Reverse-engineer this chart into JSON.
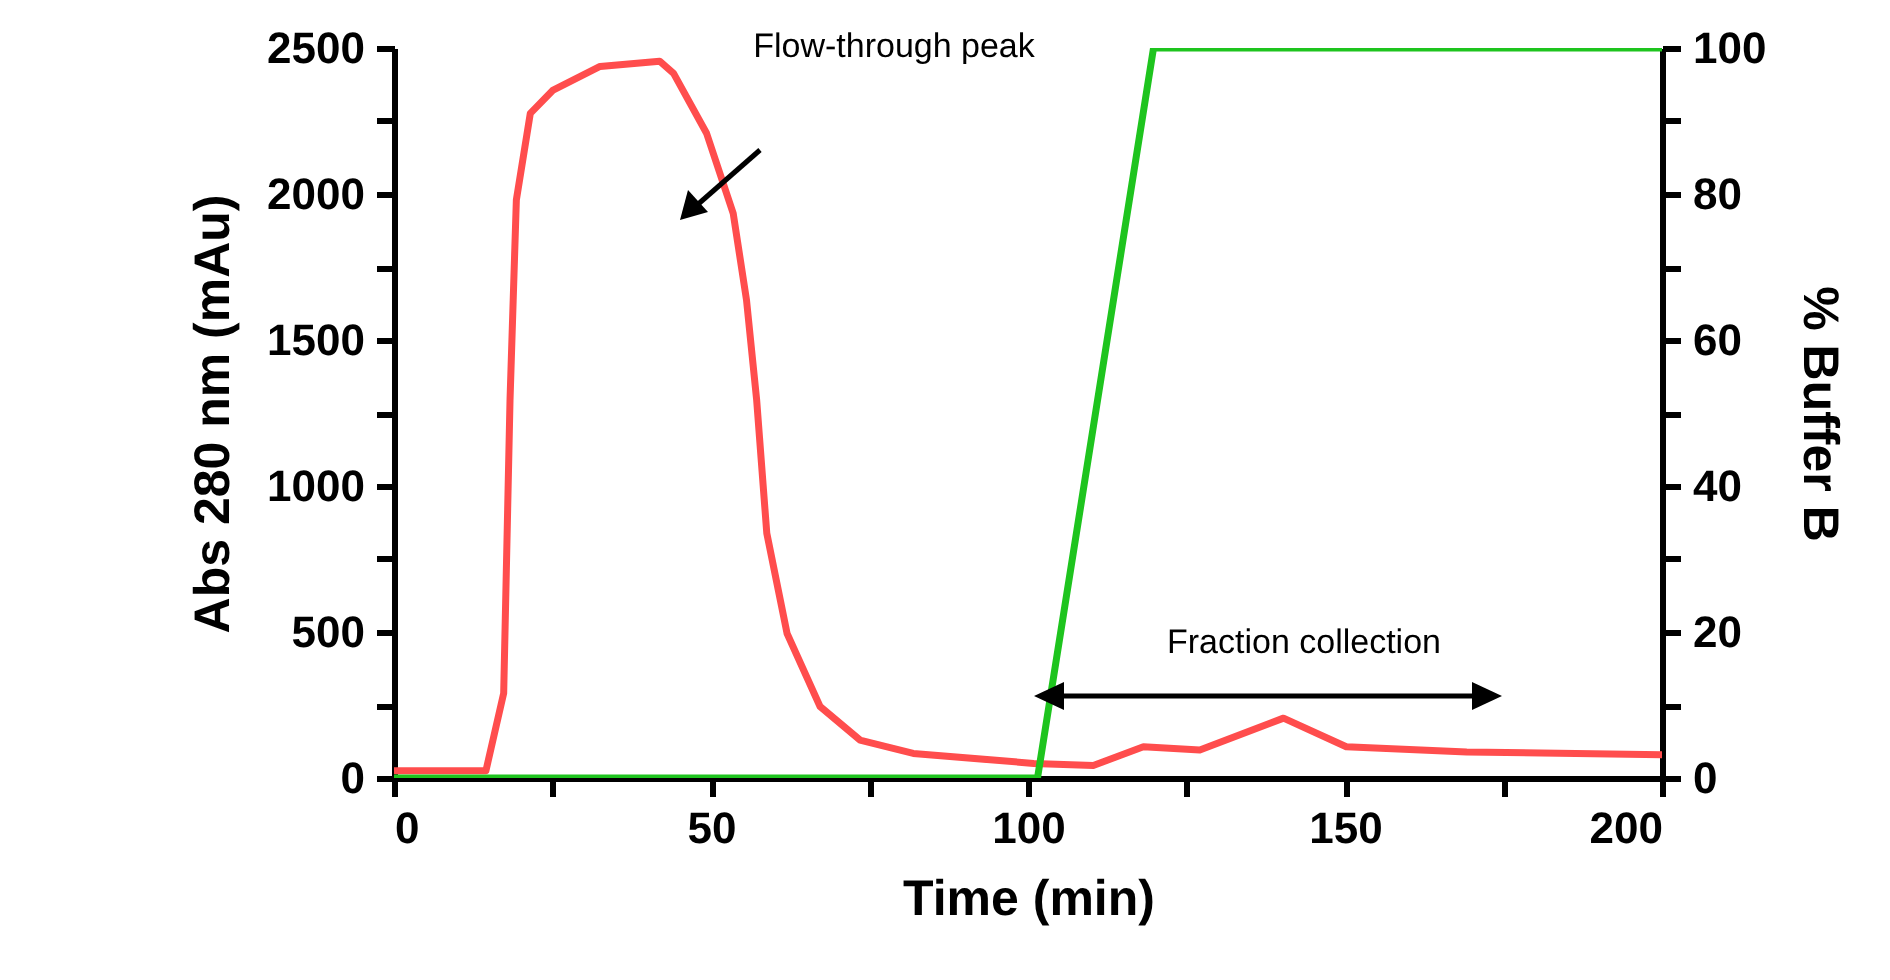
{
  "chart_data": {
    "type": "line",
    "xlabel": "Time (min)",
    "ylabel": "Abs 280 nm (mAu)",
    "y2label": "% Buffer B",
    "series": [
      {
        "color": "#ff4d4d",
        "x": [
          0,
          14.5,
          17.3,
          18.3,
          19.3,
          21.5,
          25.1,
          32.5,
          41.9,
          44.1,
          49.3,
          53.5,
          55.6,
          57.2,
          58.8,
          62,
          67.2,
          73.5,
          81.9,
          100.9,
          110.3,
          118.2,
          127.1,
          140.3,
          150.2,
          169.2,
          200
        ],
        "values": [
          25,
          25,
          290,
          1295,
          1980,
          2276,
          2356,
          2437,
          2455,
          2413,
          2208,
          1934,
          1637,
          1295,
          838,
          495,
          245,
          130,
          84,
          50,
          43,
          107,
          96,
          205,
          107,
          89,
          80
        ]
      },
      {
        "color": "#1ec41e",
        "axis": "y2",
        "x": [
          0,
          101.5,
          119.8,
          200
        ],
        "values": [
          0,
          0,
          100,
          100
        ]
      }
    ],
    "xlim": [
      0,
      200
    ],
    "xticks": [
      0,
      {
        "value": 25,
        "label": null
      },
      50,
      {
        "value": 75,
        "label": null
      },
      100,
      {
        "value": 125,
        "label": null
      },
      150,
      {
        "value": 175,
        "label": null
      },
      200
    ],
    "ylim": [
      0,
      2500
    ],
    "yticks": [
      0,
      {
        "value": 250,
        "label": null
      },
      500,
      {
        "value": 750,
        "label": null
      },
      1000,
      {
        "value": 1250,
        "label": null
      },
      1500,
      {
        "value": 1750,
        "label": null
      },
      2000,
      {
        "value": 2250,
        "label": null
      },
      2500
    ],
    "y2lim": [
      0,
      100
    ],
    "y2ticks": [
      0,
      {
        "value": 10,
        "label": null
      },
      20,
      {
        "value": 30,
        "label": null
      },
      40,
      {
        "value": 50,
        "label": null
      },
      60,
      {
        "value": 70,
        "label": null
      },
      80,
      {
        "value": 90,
        "label": null
      },
      100
    ],
    "annotations": [
      "Flow-through peak",
      "Fraction collection"
    ],
    "grid": false,
    "marker": "none",
    "line_style": "solid"
  }
}
